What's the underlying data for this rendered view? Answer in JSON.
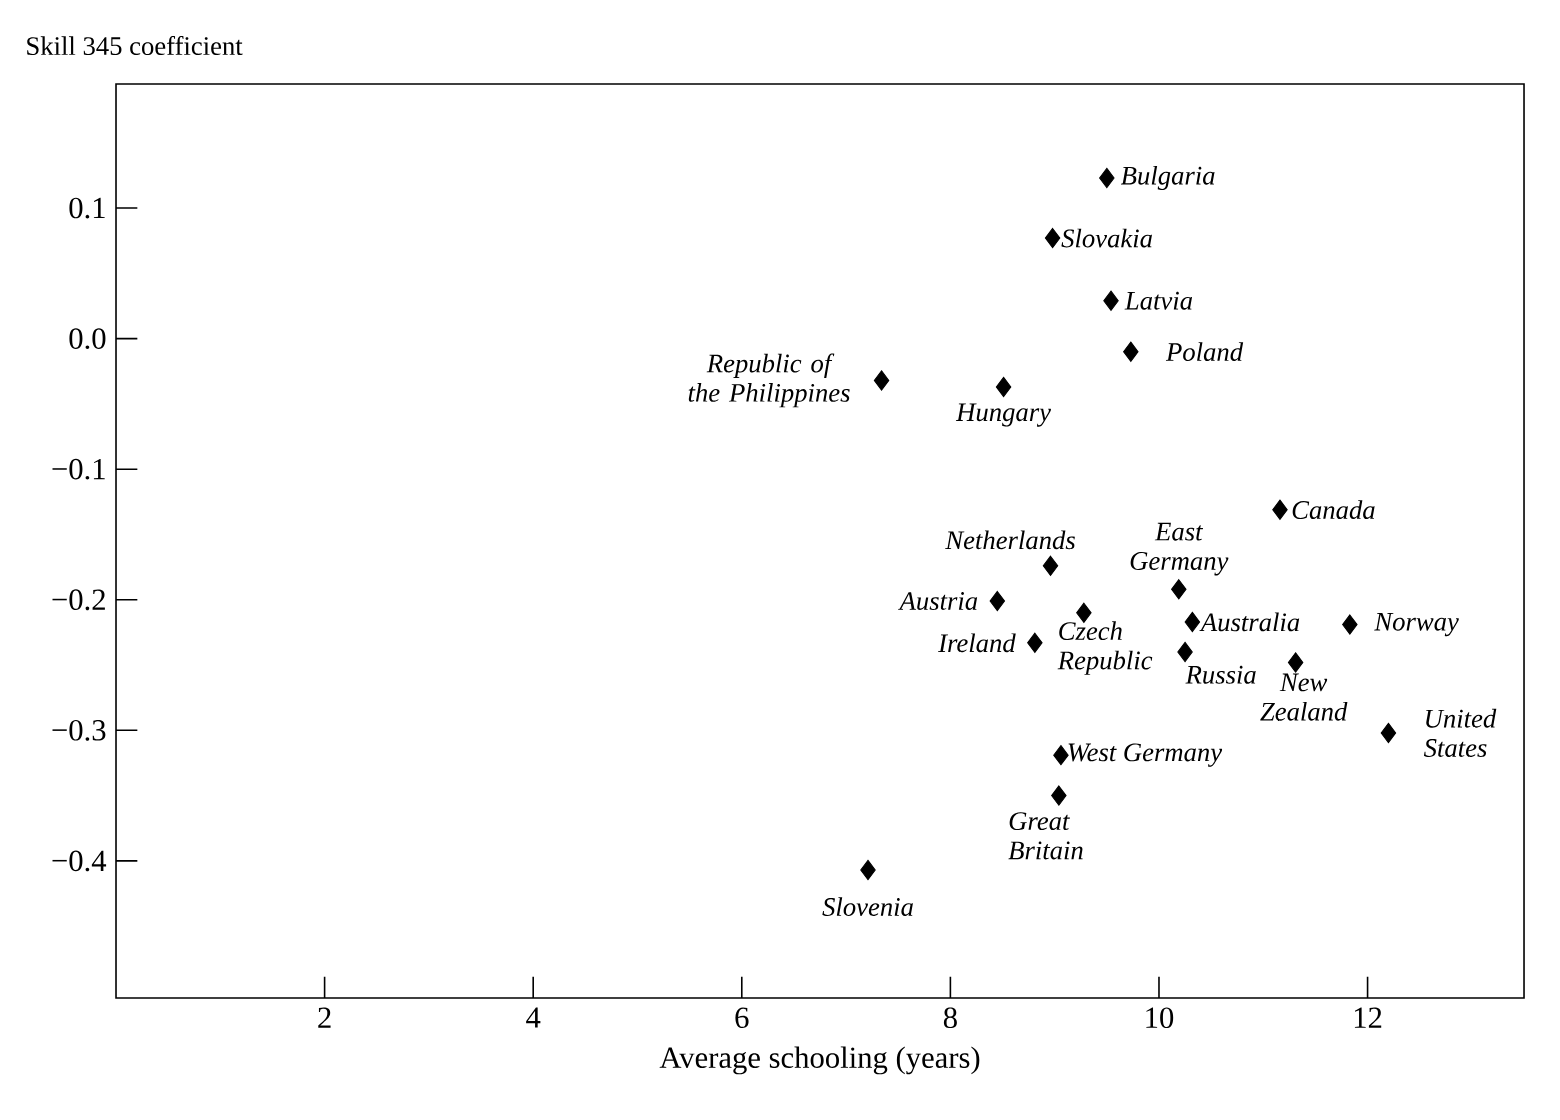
{
  "chart_data": {
    "type": "scatter",
    "ylabel": "Skill 345 coefficient",
    "xlabel": "Average schooling (years)",
    "xlim": [
      0,
      13.5
    ],
    "ylim": [
      -0.505,
      0.195
    ],
    "xticks": [
      2,
      4,
      6,
      8,
      10,
      12
    ],
    "yticks": [
      {
        "value": 0.1,
        "label": "0.1"
      },
      {
        "value": 0,
        "label": "0.0"
      },
      {
        "value": -0.1,
        "label": "−0.1"
      },
      {
        "value": -0.2,
        "label": "−0.2"
      },
      {
        "value": -0.3,
        "label": "−0.3"
      },
      {
        "value": -0.4,
        "label": "−0.4"
      }
    ],
    "marker": "diamond",
    "series": [
      {
        "color": "#000000",
        "x": [
          9.5,
          8.98,
          9.54,
          9.73,
          7.34,
          8.51,
          11.16,
          8.96,
          10.19,
          8.45,
          9.28,
          10.32,
          11.83,
          8.81,
          10.25,
          11.31,
          12.2,
          9.06,
          9.04,
          7.21
        ],
        "values": [
          0.123,
          0.077,
          0.029,
          -0.01,
          -0.032,
          -0.037,
          -0.131,
          -0.174,
          -0.192,
          -0.201,
          -0.21,
          -0.217,
          -0.219,
          -0.233,
          -0.24,
          -0.248,
          -0.302,
          -0.319,
          -0.35,
          -0.407
        ]
      }
    ],
    "annotations": [
      {
        "text": "Bulgaria",
        "x": 9.5,
        "y": 0.123
      },
      {
        "text": "Slovakia",
        "x": 8.98,
        "y": 0.077
      },
      {
        "text": "Latvia",
        "x": 9.54,
        "y": 0.029
      },
      {
        "text": "Poland",
        "x": 9.73,
        "y": -0.01
      },
      {
        "text": "Republic of the Philippines",
        "x": 7.34,
        "y": -0.032
      },
      {
        "text": "Hungary",
        "x": 8.51,
        "y": -0.037
      },
      {
        "text": "Canada",
        "x": 11.16,
        "y": -0.131
      },
      {
        "text": "Netherlands",
        "x": 8.96,
        "y": -0.174
      },
      {
        "text": "East Germany",
        "x": 10.19,
        "y": -0.192
      },
      {
        "text": "Austria",
        "x": 8.45,
        "y": -0.201
      },
      {
        "text": "Czech Republic",
        "x": 9.28,
        "y": -0.21
      },
      {
        "text": "Australia",
        "x": 10.32,
        "y": -0.217
      },
      {
        "text": "Norway",
        "x": 11.83,
        "y": -0.219
      },
      {
        "text": "Ireland",
        "x": 8.81,
        "y": -0.233
      },
      {
        "text": "Russia",
        "x": 10.25,
        "y": -0.24
      },
      {
        "text": "New Zealand",
        "x": 11.31,
        "y": -0.248
      },
      {
        "text": "United States",
        "x": 12.2,
        "y": -0.302
      },
      {
        "text": "West Germany",
        "x": 9.06,
        "y": -0.319
      },
      {
        "text": "Great Britain",
        "x": 9.04,
        "y": -0.35
      },
      {
        "text": "Slovenia",
        "x": 7.21,
        "y": -0.407
      }
    ]
  }
}
